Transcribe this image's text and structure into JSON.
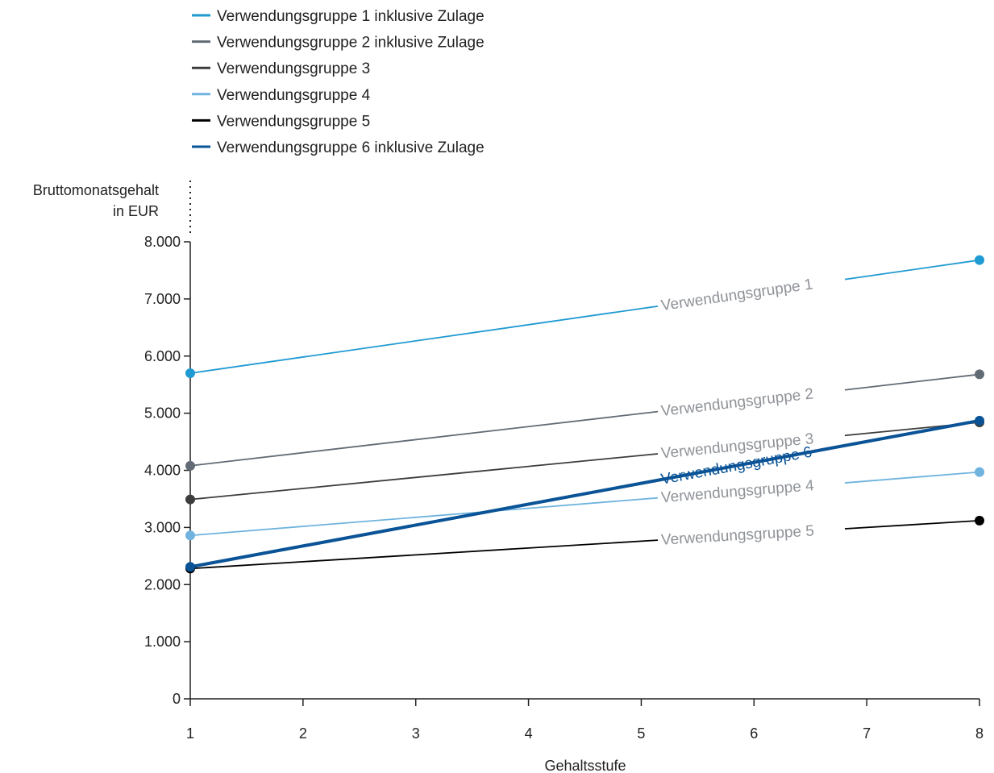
{
  "chart_data": {
    "type": "line",
    "title": "",
    "xlabel": "Gehaltsstufe",
    "ylabel": "Bruttomonatsgehalt in EUR",
    "ylabel_lines": [
      "Bruttomonatsgehalt",
      "in EUR"
    ],
    "x_ticks": [
      "1",
      "2",
      "3",
      "4",
      "5",
      "6",
      "7",
      "8"
    ],
    "y_ticks": [
      "0",
      "1.000",
      "2.000",
      "3.000",
      "4.000",
      "5.000",
      "6.000",
      "7.000",
      "8.000"
    ],
    "xlim": [
      1,
      8
    ],
    "ylim": [
      0,
      8000
    ],
    "grid": false,
    "legend_position": "top-left",
    "series": [
      {
        "name": "Verwendungsgruppe 1 inklusive Zulage",
        "inline_label": "Verwendungsgruppe 1",
        "color": "#1f9ad2",
        "x": [
          1,
          8
        ],
        "values": [
          5700,
          7680
        ]
      },
      {
        "name": "Verwendungsgruppe 2 inklusive Zulage",
        "inline_label": "Verwendungsgruppe 2",
        "color": "#626b75",
        "x": [
          1,
          8
        ],
        "values": [
          4080,
          5680
        ]
      },
      {
        "name": "Verwendungsgruppe 3",
        "inline_label": "Verwendungsgruppe 3",
        "color": "#3c3c3c",
        "x": [
          1,
          8
        ],
        "values": [
          3490,
          4840
        ]
      },
      {
        "name": "Verwendungsgruppe 4",
        "inline_label": "Verwendungsgruppe 4",
        "color": "#6fb3de",
        "x": [
          1,
          8
        ],
        "values": [
          2860,
          3970
        ]
      },
      {
        "name": "Verwendungsgruppe 5",
        "inline_label": "Verwendungsgruppe 5",
        "color": "#000000",
        "x": [
          1,
          8
        ],
        "values": [
          2280,
          3120
        ]
      },
      {
        "name": "Verwendungsgruppe 6 inklusive Zulage",
        "inline_label": "Verwendungsgruppe 6",
        "color": "#0a5396",
        "x": [
          1,
          8
        ],
        "values": [
          2310,
          4870
        ]
      }
    ]
  }
}
